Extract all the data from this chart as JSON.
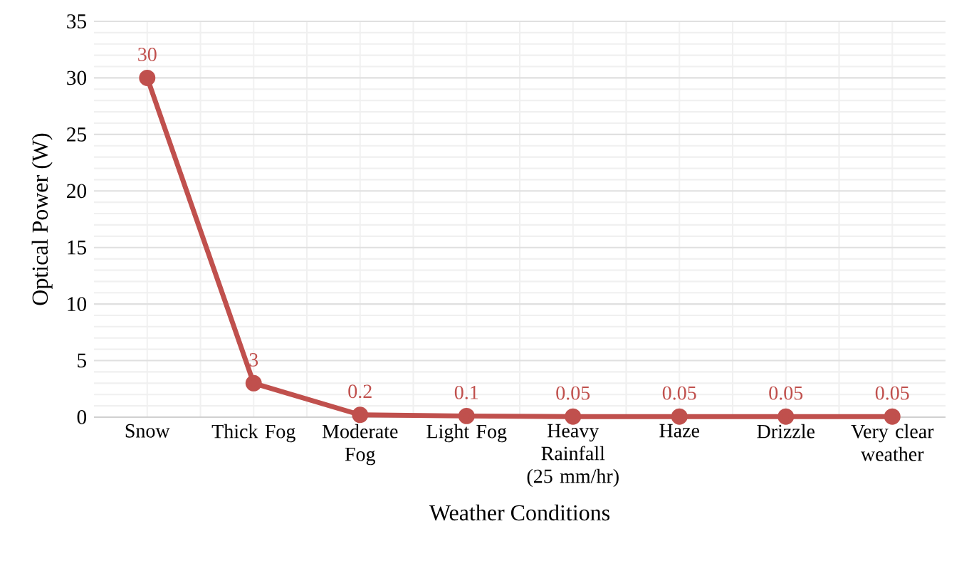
{
  "chart_data": {
    "type": "line",
    "xlabel": "Weather Conditions",
    "ylabel": "Optical Power (W)",
    "categories": [
      "Snow",
      "Thick Fog",
      "Moderate Fog",
      "Light Fog",
      "Heavy Rainfall (25 mm/hr)",
      "Haze",
      "Drizzle",
      "Very clear weather"
    ],
    "values": [
      30,
      3,
      0.2,
      0.1,
      0.05,
      0.05,
      0.05,
      0.05
    ],
    "color": "#c0504d",
    "marker": "circle",
    "line_style": "solid",
    "data_labels": true,
    "grid": true,
    "ylim": [
      0,
      35
    ],
    "yticks": [
      0,
      5,
      10,
      15,
      20,
      25,
      30,
      35
    ]
  }
}
